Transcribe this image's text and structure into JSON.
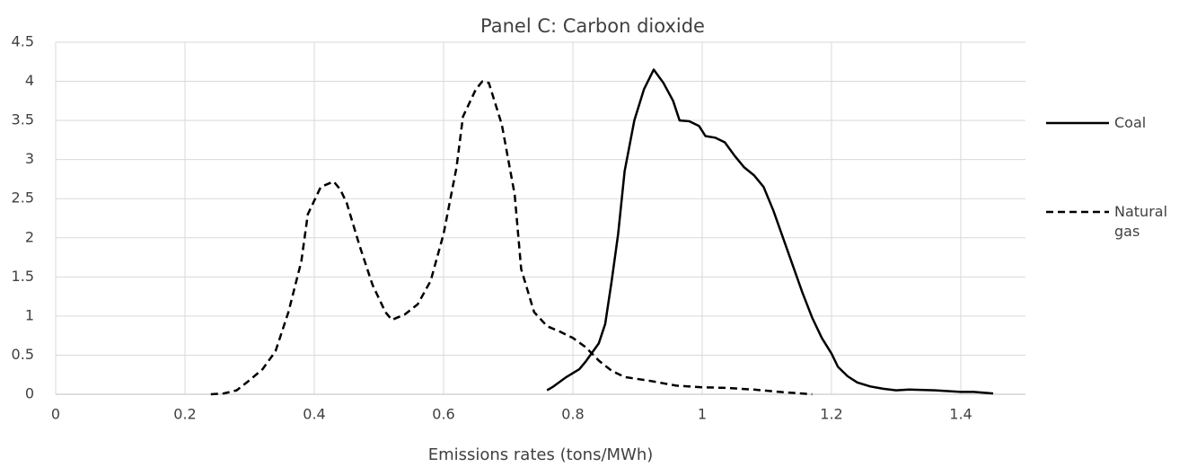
{
  "chart_data": {
    "type": "line",
    "title": "Panel C: Carbon dioxide",
    "x_label": "Emissions rates (tons/MWh)",
    "xlim": [
      0,
      1.5
    ],
    "xticks": [
      0,
      0.2,
      0.4,
      0.6,
      0.8,
      1,
      1.2,
      1.4
    ],
    "ylim": [
      0,
      4.5
    ],
    "yticks": [
      0,
      0.5,
      1,
      1.5,
      2,
      2.5,
      3,
      3.5,
      4,
      4.5
    ],
    "grid": true,
    "legend": "right",
    "series": [
      {
        "name": "Coal",
        "color": "#000000",
        "dash": "solid",
        "x": [
          0.76,
          0.77,
          0.79,
          0.81,
          0.82,
          0.84,
          0.85,
          0.86,
          0.87,
          0.88,
          0.895,
          0.91,
          0.925,
          0.94,
          0.955,
          0.965,
          0.98,
          0.995,
          1.005,
          1.02,
          1.035,
          1.05,
          1.065,
          1.08,
          1.095,
          1.11,
          1.125,
          1.14,
          1.155,
          1.17,
          1.185,
          1.2,
          1.21,
          1.225,
          1.24,
          1.26,
          1.28,
          1.3,
          1.32,
          1.36,
          1.4,
          1.42,
          1.45
        ],
        "values": [
          0.05,
          0.1,
          0.22,
          0.32,
          0.42,
          0.65,
          0.9,
          1.45,
          2.05,
          2.85,
          3.5,
          3.9,
          4.15,
          3.98,
          3.75,
          3.5,
          3.49,
          3.43,
          3.3,
          3.28,
          3.22,
          3.05,
          2.9,
          2.8,
          2.65,
          2.35,
          2.0,
          1.65,
          1.3,
          0.98,
          0.72,
          0.52,
          0.35,
          0.23,
          0.15,
          0.1,
          0.07,
          0.05,
          0.06,
          0.05,
          0.03,
          0.03,
          0.01
        ]
      },
      {
        "name": "Natural gas",
        "color": "#000000",
        "dash": "dashed",
        "x": [
          0.24,
          0.26,
          0.28,
          0.3,
          0.32,
          0.34,
          0.36,
          0.38,
          0.39,
          0.41,
          0.43,
          0.44,
          0.45,
          0.47,
          0.49,
          0.51,
          0.52,
          0.54,
          0.56,
          0.58,
          0.6,
          0.62,
          0.63,
          0.65,
          0.66,
          0.67,
          0.69,
          0.71,
          0.72,
          0.74,
          0.76,
          0.78,
          0.8,
          0.82,
          0.84,
          0.86,
          0.88,
          0.92,
          0.96,
          1.0,
          1.04,
          1.08,
          1.12,
          1.17
        ],
        "values": [
          0,
          0.01,
          0.05,
          0.18,
          0.32,
          0.55,
          1.05,
          1.7,
          2.3,
          2.65,
          2.72,
          2.62,
          2.45,
          1.9,
          1.4,
          1.05,
          0.95,
          1.02,
          1.15,
          1.45,
          2.05,
          2.9,
          3.55,
          3.9,
          4.0,
          3.98,
          3.45,
          2.55,
          1.6,
          1.05,
          0.87,
          0.8,
          0.72,
          0.6,
          0.43,
          0.3,
          0.22,
          0.17,
          0.11,
          0.09,
          0.08,
          0.06,
          0.03,
          0
        ]
      }
    ]
  }
}
